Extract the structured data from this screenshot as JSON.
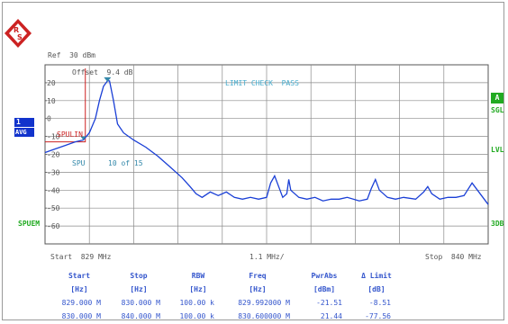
{
  "header": {
    "ref_level": "Ref  30 dBm",
    "offset": "Offset  9.4 dB"
  },
  "side": {
    "trace_number": "1",
    "trace_mode": "AVG",
    "sweep_mode": "SPUEM",
    "right_badge": "A",
    "right_sgl": "SGL",
    "right_lvl": "LVL",
    "right_3db": "3DB"
  },
  "plot": {
    "y_ticks": [
      "20",
      "10",
      "0",
      "-10",
      "-20",
      "-30",
      "-40",
      "-50",
      "-60"
    ],
    "limit_check": "LIMIT CHECK  PASS",
    "limit_line_label": "SPULIN",
    "marker_label": "SPU",
    "marker_info": "10 of 15"
  },
  "footer": {
    "start": "Start  829 MHz",
    "span": "1.1 MHz/",
    "stop": "Stop  840 MHz"
  },
  "table": {
    "headers": [
      "Start",
      "Stop",
      "RBW",
      "Freq",
      "PwrAbs",
      "Δ Limit"
    ],
    "units": [
      "[Hz]",
      "[Hz]",
      "[Hz]",
      "[Hz]",
      "[dBm]",
      "[dB]"
    ],
    "rows": [
      [
        "829.000 M",
        "830.000 M",
        "100.00 k",
        "829.992000 M",
        "-21.51",
        "-8.51"
      ],
      [
        "830.000 M",
        "840.000 M",
        "100.00 k",
        "830.600000 M",
        "21.44",
        "-77.56"
      ]
    ]
  },
  "colors": {
    "trace": "#1a3fd6",
    "limit": "#cc2222",
    "grid": "#555555",
    "status": "#22aa22",
    "table_text": "#3355cc"
  },
  "chart_data": {
    "type": "line",
    "xlim": [
      829,
      840
    ],
    "ylim": [
      -70,
      30
    ],
    "x_unit": "MHz",
    "y_unit": "dBm",
    "series": [
      {
        "x": [
          829.0,
          829.25,
          829.5,
          829.75,
          829.95,
          830.1,
          830.25,
          830.35,
          830.45,
          830.55,
          830.6,
          830.7,
          830.8,
          830.95,
          831.2,
          831.5,
          831.8,
          832.1,
          832.4,
          832.6,
          832.75,
          832.9,
          833.1,
          833.3,
          833.5,
          833.7,
          833.9,
          834.1,
          834.3,
          834.5,
          834.6,
          834.7,
          834.9,
          835.0,
          835.05,
          835.1,
          835.3,
          835.5,
          835.7,
          835.9,
          836.1,
          836.3,
          836.5,
          836.8,
          837.0,
          837.1,
          837.2,
          837.3,
          837.5,
          837.7,
          837.9,
          838.2,
          838.4,
          838.5,
          838.6,
          838.8,
          839.0,
          839.2,
          839.4,
          839.6,
          839.8,
          840.0
        ],
        "y": [
          -19,
          -17,
          -15,
          -13,
          -12,
          -8,
          0,
          10,
          18,
          21,
          21,
          10,
          -3,
          -8,
          -12,
          -16,
          -21,
          -27,
          -33,
          -38,
          -42,
          -44,
          -41,
          -43,
          -41,
          -44,
          -45,
          -44,
          -45,
          -44,
          -36,
          -32,
          -44,
          -42,
          -34,
          -40,
          -44,
          -45,
          -44,
          -46,
          -45,
          -45,
          -44,
          -46,
          -45,
          -39,
          -34,
          -40,
          -44,
          -45,
          -44,
          -45,
          -41,
          -38,
          -42,
          -45,
          -44,
          -44,
          -43,
          -36,
          -42,
          -48
        ]
      }
    ]
  }
}
